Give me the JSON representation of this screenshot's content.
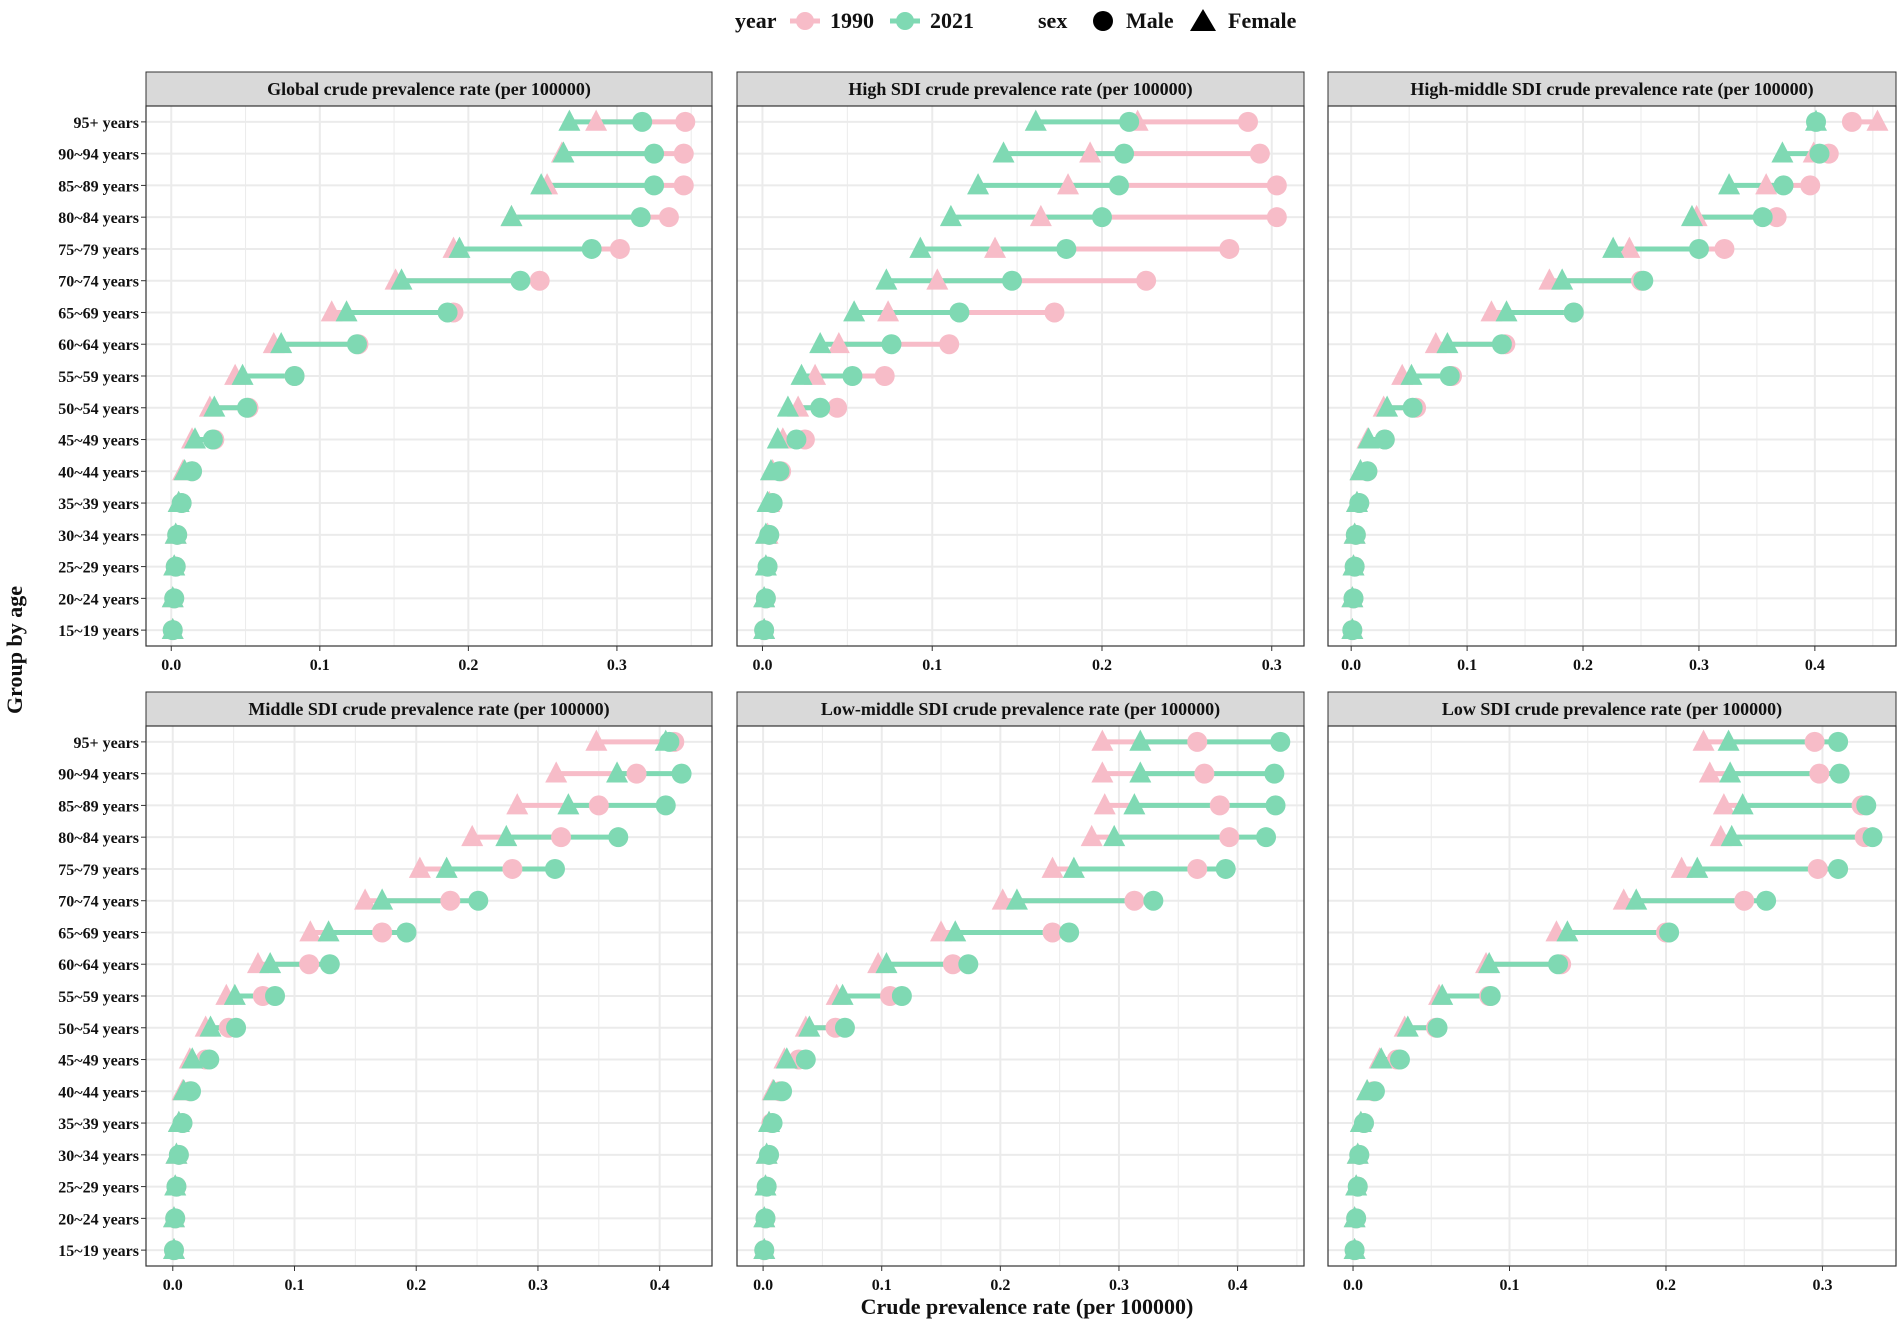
{
  "chart_data": {
    "type": "scatter",
    "subtype": "dumbbell faceted",
    "xlabel": "Crude prevalence rate (per 100000)",
    "ylabel": "Group by age",
    "categories": [
      "15~19 years",
      "20~24 years",
      "25~29 years",
      "30~34 years",
      "35~39 years",
      "40~44 years",
      "45~49 years",
      "50~54 years",
      "55~59 years",
      "60~64 years",
      "65~69 years",
      "70~74 years",
      "75~79 years",
      "80~84 years",
      "85~89 years",
      "90~94 years",
      "95+ years"
    ],
    "legend": {
      "position": "top",
      "year_title": "year",
      "year_items": [
        {
          "label": "1990",
          "color": "#f7bcc8"
        },
        {
          "label": "2021",
          "color": "#7fd9b3"
        }
      ],
      "sex_title": "sex",
      "sex_items": [
        {
          "label": "Male",
          "shape": "circle"
        },
        {
          "label": "Female",
          "shape": "triangle"
        }
      ]
    },
    "colors": {
      "1990": "#f7bcc8",
      "2021": "#7fd9b3",
      "strip_bg": "#d9d9d9",
      "grid": "#ebebeb"
    },
    "grid": true,
    "panels": [
      {
        "title": "Global crude prevalence rate (per 100000)",
        "xlim": [
          -0.017,
          0.364
        ],
        "xticks": [
          0.0,
          0.1,
          0.2,
          0.3
        ],
        "xtick_labels": [
          "0.0",
          "0.1",
          "0.2",
          "0.3"
        ],
        "male_1990": [
          0.001,
          0.002,
          0.003,
          0.004,
          0.007,
          0.014,
          0.029,
          0.052,
          0.083,
          0.126,
          0.19,
          0.248,
          0.302,
          0.335,
          0.345,
          0.345,
          0.346
        ],
        "male_2021": [
          0.001,
          0.002,
          0.003,
          0.004,
          0.007,
          0.014,
          0.028,
          0.051,
          0.083,
          0.125,
          0.186,
          0.235,
          0.283,
          0.316,
          0.325,
          0.325,
          0.317
        ],
        "female_1990": [
          0.001,
          0.001,
          0.002,
          0.003,
          0.005,
          0.008,
          0.014,
          0.026,
          0.043,
          0.069,
          0.108,
          0.151,
          0.19,
          0.229,
          0.253,
          0.263,
          0.286
        ],
        "female_2021": [
          0.001,
          0.001,
          0.002,
          0.003,
          0.005,
          0.009,
          0.016,
          0.029,
          0.048,
          0.074,
          0.118,
          0.155,
          0.194,
          0.229,
          0.249,
          0.264,
          0.268
        ]
      },
      {
        "title": "High SDI crude prevalence rate (per 100000)",
        "xlim": [
          -0.015,
          0.319
        ],
        "xticks": [
          0.0,
          0.1,
          0.2,
          0.3
        ],
        "xtick_labels": [
          "0.0",
          "0.1",
          "0.2",
          "0.3"
        ],
        "male_1990": [
          0.001,
          0.002,
          0.003,
          0.004,
          0.006,
          0.011,
          0.025,
          0.044,
          0.072,
          0.11,
          0.172,
          0.226,
          0.275,
          0.303,
          0.303,
          0.293,
          0.286
        ],
        "male_2021": [
          0.001,
          0.002,
          0.003,
          0.004,
          0.006,
          0.01,
          0.02,
          0.034,
          0.053,
          0.076,
          0.116,
          0.147,
          0.179,
          0.2,
          0.21,
          0.213,
          0.216
        ],
        "female_1990": [
          0.001,
          0.001,
          0.002,
          0.003,
          0.004,
          0.006,
          0.012,
          0.021,
          0.031,
          0.045,
          0.074,
          0.103,
          0.137,
          0.164,
          0.18,
          0.193,
          0.221
        ],
        "female_2021": [
          0.001,
          0.001,
          0.002,
          0.002,
          0.003,
          0.005,
          0.009,
          0.015,
          0.023,
          0.034,
          0.054,
          0.073,
          0.093,
          0.111,
          0.127,
          0.142,
          0.161
        ]
      },
      {
        "title": "High-middle SDI  crude prevalence rate (per 100000)",
        "xlim": [
          -0.02,
          0.47
        ],
        "xticks": [
          0.0,
          0.1,
          0.2,
          0.3,
          0.4
        ],
        "xtick_labels": [
          "0.0",
          "0.1",
          "0.2",
          "0.3",
          "0.4"
        ],
        "male_1990": [
          0.001,
          0.002,
          0.003,
          0.004,
          0.007,
          0.014,
          0.029,
          0.056,
          0.087,
          0.133,
          0.192,
          0.25,
          0.322,
          0.367,
          0.396,
          0.412,
          0.432
        ],
        "male_2021": [
          0.001,
          0.002,
          0.003,
          0.004,
          0.007,
          0.014,
          0.029,
          0.053,
          0.085,
          0.13,
          0.192,
          0.252,
          0.3,
          0.355,
          0.373,
          0.404,
          0.401
        ],
        "female_1990": [
          0.001,
          0.001,
          0.002,
          0.003,
          0.005,
          0.008,
          0.014,
          0.028,
          0.044,
          0.073,
          0.121,
          0.171,
          0.24,
          0.298,
          0.358,
          0.399,
          0.454
        ],
        "female_2021": [
          0.001,
          0.001,
          0.002,
          0.003,
          0.005,
          0.008,
          0.015,
          0.031,
          0.052,
          0.083,
          0.134,
          0.182,
          0.226,
          0.294,
          0.326,
          0.372,
          0.401
        ]
      },
      {
        "title": "Middle SDI crude prevalence rate (per 100000)",
        "xlim": [
          -0.022,
          0.443
        ],
        "xticks": [
          0.0,
          0.1,
          0.2,
          0.3,
          0.4
        ],
        "xtick_labels": [
          "0.0",
          "0.1",
          "0.2",
          "0.3",
          "0.4"
        ],
        "male_1990": [
          0.001,
          0.002,
          0.003,
          0.005,
          0.008,
          0.014,
          0.027,
          0.046,
          0.074,
          0.112,
          0.172,
          0.228,
          0.279,
          0.319,
          0.35,
          0.381,
          0.412
        ],
        "male_2021": [
          0.001,
          0.002,
          0.003,
          0.005,
          0.008,
          0.015,
          0.03,
          0.052,
          0.084,
          0.129,
          0.192,
          0.251,
          0.314,
          0.366,
          0.405,
          0.418,
          0.408
        ],
        "female_1990": [
          0.001,
          0.001,
          0.002,
          0.003,
          0.005,
          0.008,
          0.014,
          0.027,
          0.044,
          0.07,
          0.113,
          0.158,
          0.203,
          0.246,
          0.283,
          0.315,
          0.348
        ],
        "female_2021": [
          0.001,
          0.001,
          0.002,
          0.003,
          0.005,
          0.009,
          0.016,
          0.031,
          0.051,
          0.08,
          0.128,
          0.172,
          0.225,
          0.274,
          0.325,
          0.365,
          0.405
        ]
      },
      {
        "title": "Low-middle SDI crude prevalence rate (per 100000)",
        "xlim": [
          -0.022,
          0.456
        ],
        "xticks": [
          0.0,
          0.1,
          0.2,
          0.3,
          0.4
        ],
        "xtick_labels": [
          "0.0",
          "0.1",
          "0.2",
          "0.3",
          "0.4"
        ],
        "male_1990": [
          0.001,
          0.002,
          0.003,
          0.005,
          0.007,
          0.014,
          0.03,
          0.061,
          0.107,
          0.16,
          0.244,
          0.313,
          0.366,
          0.393,
          0.385,
          0.372,
          0.366
        ],
        "male_2021": [
          0.001,
          0.002,
          0.003,
          0.005,
          0.008,
          0.016,
          0.036,
          0.069,
          0.117,
          0.173,
          0.258,
          0.329,
          0.39,
          0.424,
          0.432,
          0.431,
          0.436
        ],
        "female_1990": [
          0.001,
          0.001,
          0.002,
          0.003,
          0.005,
          0.008,
          0.018,
          0.036,
          0.062,
          0.097,
          0.15,
          0.202,
          0.244,
          0.277,
          0.288,
          0.286,
          0.286
        ],
        "female_2021": [
          0.001,
          0.001,
          0.002,
          0.003,
          0.005,
          0.009,
          0.02,
          0.039,
          0.067,
          0.104,
          0.162,
          0.214,
          0.262,
          0.296,
          0.313,
          0.318,
          0.318
        ]
      },
      {
        "title": "Low SDI crude prevalence rate (per 100000)",
        "xlim": [
          -0.016,
          0.347
        ],
        "xticks": [
          0.0,
          0.1,
          0.2,
          0.3
        ],
        "xtick_labels": [
          "0.0",
          "0.1",
          "0.2",
          "0.3"
        ],
        "male_1990": [
          0.001,
          0.002,
          0.003,
          0.004,
          0.007,
          0.013,
          0.028,
          0.053,
          0.087,
          0.133,
          0.2,
          0.25,
          0.297,
          0.327,
          0.325,
          0.298,
          0.295
        ],
        "male_2021": [
          0.001,
          0.002,
          0.003,
          0.004,
          0.007,
          0.014,
          0.03,
          0.054,
          0.088,
          0.131,
          0.202,
          0.264,
          0.31,
          0.332,
          0.328,
          0.311,
          0.31
        ],
        "female_1990": [
          0.001,
          0.001,
          0.002,
          0.003,
          0.005,
          0.009,
          0.017,
          0.033,
          0.055,
          0.085,
          0.13,
          0.173,
          0.21,
          0.235,
          0.237,
          0.228,
          0.224
        ],
        "female_2021": [
          0.001,
          0.001,
          0.002,
          0.003,
          0.005,
          0.009,
          0.018,
          0.035,
          0.057,
          0.087,
          0.137,
          0.181,
          0.22,
          0.242,
          0.249,
          0.241,
          0.24
        ]
      }
    ]
  }
}
